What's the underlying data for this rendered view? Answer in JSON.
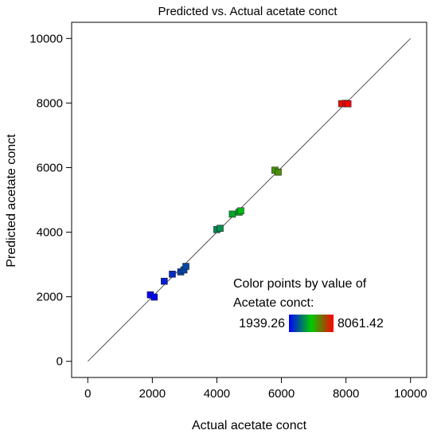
{
  "chart_data": {
    "type": "scatter",
    "title": "Predicted vs. Actual acetate conct",
    "xlabel": "Actual acetate conct",
    "ylabel": "Predicted acetate conct",
    "xlim": [
      -500,
      10500
    ],
    "ylim": [
      -500,
      10500
    ],
    "xticks": [
      0,
      2000,
      4000,
      6000,
      8000,
      10000
    ],
    "yticks": [
      0,
      2000,
      4000,
      6000,
      8000,
      10000
    ],
    "grid": false,
    "reference_line": {
      "from": [
        0,
        0
      ],
      "to": [
        10000,
        10000
      ]
    },
    "points": [
      {
        "x": 1940,
        "y": 2060,
        "value": 1939.26
      },
      {
        "x": 2060,
        "y": 1990,
        "value": 2060
      },
      {
        "x": 2370,
        "y": 2480,
        "value": 2370
      },
      {
        "x": 2620,
        "y": 2700,
        "value": 2620
      },
      {
        "x": 2880,
        "y": 2770,
        "value": 2880
      },
      {
        "x": 2980,
        "y": 2830,
        "value": 2980
      },
      {
        "x": 3040,
        "y": 2940,
        "value": 3040
      },
      {
        "x": 4000,
        "y": 4080,
        "value": 4000
      },
      {
        "x": 4100,
        "y": 4120,
        "value": 4100
      },
      {
        "x": 4480,
        "y": 4560,
        "value": 4480
      },
      {
        "x": 4690,
        "y": 4620,
        "value": 4690
      },
      {
        "x": 4740,
        "y": 4660,
        "value": 4740
      },
      {
        "x": 5800,
        "y": 5920,
        "value": 5800
      },
      {
        "x": 5900,
        "y": 5860,
        "value": 5900
      },
      {
        "x": 7870,
        "y": 7980,
        "value": 7870
      },
      {
        "x": 7990,
        "y": 7990,
        "value": 7990
      },
      {
        "x": 8061,
        "y": 7975,
        "value": 8061.42
      }
    ],
    "legend": {
      "title_line1": "Color points by value of",
      "title_line2": "Acetate conct:",
      "min_label": "1939.26",
      "max_label": "8061.42",
      "min": 1939.26,
      "max": 8061.42,
      "gradient_colors": [
        "#0000ff",
        "#00cc00",
        "#ff0000"
      ],
      "position": "bottom-right"
    }
  }
}
